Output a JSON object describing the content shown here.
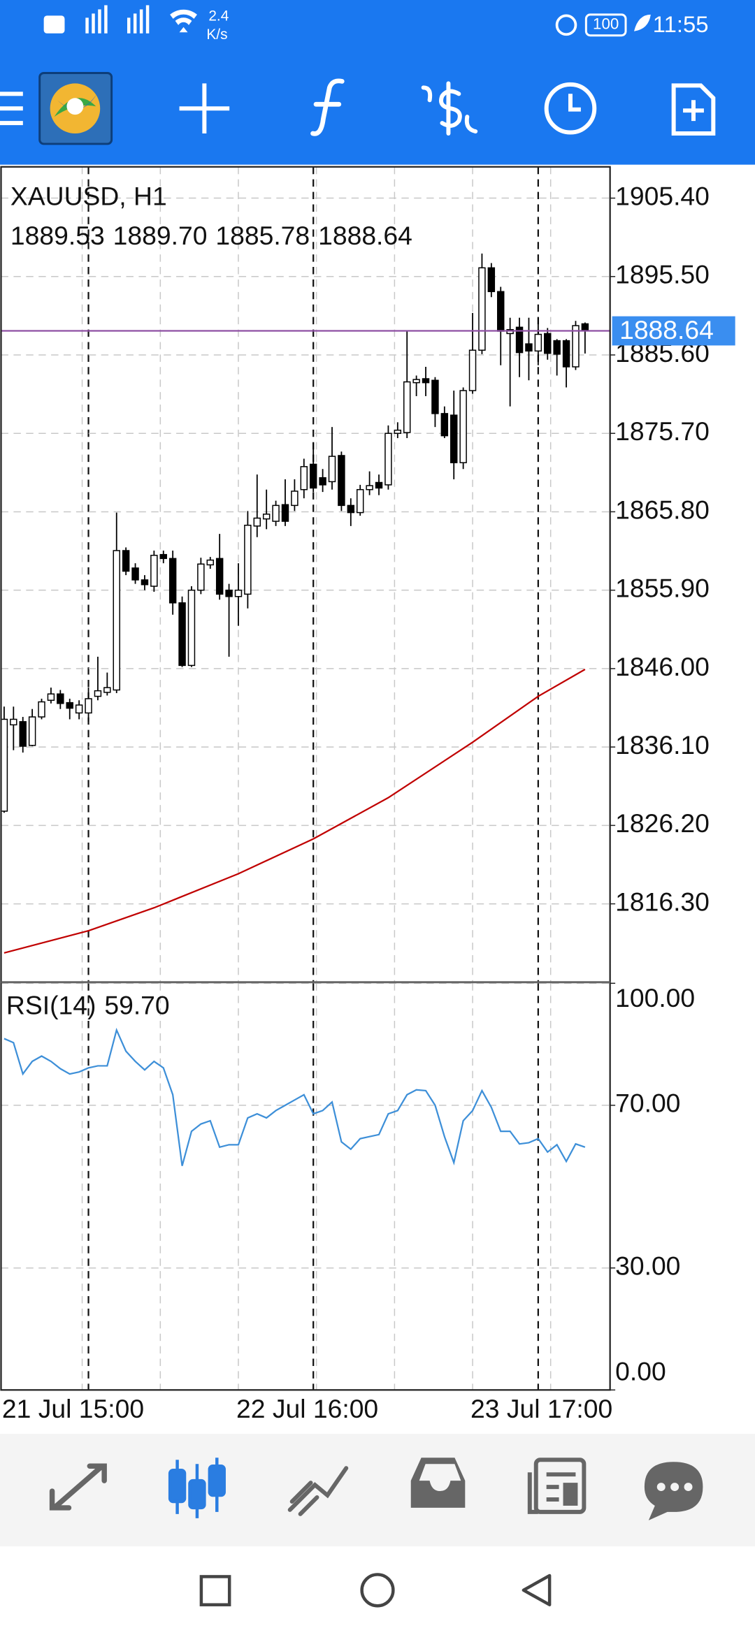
{
  "status_bar": {
    "network_speed": "2.4",
    "speed_unit": "K/s",
    "battery": "100",
    "time": "11:55"
  },
  "chart_data": [
    {
      "type": "candlestick",
      "title": "XAUUSD, H1",
      "ohlc_labels": [
        "1889.53",
        "1889.70",
        "1885.78",
        "1888.64"
      ],
      "open": [
        1828.0,
        1838.9,
        1839.3,
        1836.3,
        1839.9,
        1842.0,
        1842.8,
        1841.7,
        1840.4,
        1840.4,
        1842.5,
        1843.0,
        1843.3,
        1860.9,
        1858.7,
        1857.2,
        1856.4,
        1860.4,
        1859.9,
        1854.3,
        1846.4,
        1855.9,
        1859.1,
        1859.9,
        1855.9,
        1855.1,
        1855.4,
        1864.0,
        1864.9,
        1864.6,
        1866.7,
        1866.6,
        1868.6,
        1871.8,
        1870.1,
        1869.6,
        1872.9,
        1866.6,
        1865.7,
        1868.6,
        1869.5,
        1869.2,
        1875.7,
        1875.8,
        1882.1,
        1882.6,
        1882.4,
        1878.2,
        1878.0,
        1872.0,
        1881.1,
        1886.2,
        1896.6,
        1893.6,
        1888.3,
        1889.1,
        1887.0,
        1886.1,
        1888.3,
        1887.4,
        1887.4,
        1884.1,
        1889.53
      ],
      "high": [
        1841.2,
        1841.2,
        1839.9,
        1840.9,
        1842.2,
        1843.6,
        1843.3,
        1842.2,
        1842.0,
        1843.6,
        1847.5,
        1845.5,
        1865.7,
        1861.3,
        1859.3,
        1857.8,
        1860.9,
        1860.9,
        1860.9,
        1855.1,
        1856.4,
        1860.0,
        1860.1,
        1863.0,
        1856.7,
        1859.3,
        1865.9,
        1870.5,
        1868.6,
        1867.2,
        1869.9,
        1869.9,
        1872.5,
        1874.5,
        1871.2,
        1876.5,
        1873.4,
        1867.5,
        1869.2,
        1870.9,
        1870.5,
        1876.7,
        1877.1,
        1888.6,
        1883.0,
        1884.1,
        1882.8,
        1879.1,
        1881.1,
        1881.5,
        1890.9,
        1898.4,
        1897.2,
        1894.2,
        1890.3,
        1890.3,
        1890.3,
        1890.3,
        1889.0,
        1887.6,
        1887.6,
        1889.9,
        1889.7
      ],
      "low": [
        1827.8,
        1835.7,
        1835.4,
        1836.2,
        1839.6,
        1841.6,
        1840.9,
        1839.6,
        1839.6,
        1839.3,
        1842.0,
        1842.6,
        1842.9,
        1857.8,
        1856.7,
        1855.9,
        1855.7,
        1859.3,
        1852.8,
        1846.2,
        1846.2,
        1855.4,
        1858.6,
        1854.7,
        1847.5,
        1851.4,
        1853.6,
        1862.6,
        1863.6,
        1864.0,
        1864.0,
        1865.9,
        1867.5,
        1868.3,
        1868.3,
        1868.6,
        1865.9,
        1864.0,
        1865.3,
        1867.9,
        1867.9,
        1868.6,
        1875.1,
        1875.1,
        1880.4,
        1880.4,
        1876.5,
        1875.1,
        1869.9,
        1871.2,
        1880.7,
        1885.7,
        1892.9,
        1884.3,
        1879.1,
        1882.8,
        1882.4,
        1884.3,
        1885.0,
        1883.0,
        1881.5,
        1883.7,
        1885.78
      ],
      "close": [
        1839.6,
        1839.6,
        1836.2,
        1839.9,
        1841.8,
        1842.8,
        1841.6,
        1841.0,
        1841.4,
        1842.2,
        1843.2,
        1843.6,
        1860.9,
        1858.3,
        1857.2,
        1856.6,
        1860.3,
        1859.9,
        1854.3,
        1846.4,
        1855.9,
        1859.2,
        1859.7,
        1855.4,
        1855.1,
        1855.9,
        1864.1,
        1865.0,
        1865.5,
        1866.6,
        1864.6,
        1868.4,
        1871.5,
        1868.8,
        1869.2,
        1872.8,
        1866.6,
        1865.7,
        1868.6,
        1869.1,
        1868.8,
        1875.7,
        1876.1,
        1882.2,
        1882.5,
        1882.1,
        1878.2,
        1875.4,
        1872.0,
        1881.1,
        1886.2,
        1896.6,
        1893.6,
        1888.6,
        1888.8,
        1885.9,
        1886.1,
        1888.2,
        1885.8,
        1885.7,
        1884.1,
        1889.3,
        1888.64
      ],
      "up_color": "#ffffff",
      "down_color": "#000000",
      "moving_average": {
        "color": "#c00000",
        "x": [
          0,
          9,
          16,
          25,
          33,
          41,
          50,
          57,
          62
        ],
        "values": [
          1810.1,
          1812.9,
          1815.8,
          1820.1,
          1824.5,
          1829.7,
          1836.7,
          1842.5,
          1845.9
        ]
      },
      "current_price": {
        "value": 1888.64,
        "label": "1888.64",
        "color": "#3a8ef0",
        "line_color": "#8e4fa3"
      },
      "ylim": [
        1806.4,
        1909.35
      ],
      "yticks": [
        {
          "value": 1816.3,
          "label": "1816.30"
        },
        {
          "value": 1826.2,
          "label": "1826.20"
        },
        {
          "value": 1836.1,
          "label": "1836.10"
        },
        {
          "value": 1846.0,
          "label": "1846.00"
        },
        {
          "value": 1855.9,
          "label": "1855.90"
        },
        {
          "value": 1865.8,
          "label": "1865.80"
        },
        {
          "value": 1875.7,
          "label": "1875.70"
        },
        {
          "value": 1885.6,
          "label": "1885.60"
        },
        {
          "value": 1895.5,
          "label": "1895.50"
        },
        {
          "value": 1905.4,
          "label": "1905.40"
        }
      ],
      "xlim": [
        -0.33,
        64.67
      ],
      "xticks": [
        8.33,
        16.67,
        25,
        33.33,
        41.67,
        50,
        58.33
      ],
      "period_separators": [
        9,
        33,
        57
      ],
      "grid": true
    },
    {
      "type": "line",
      "title": "RSI(14)",
      "value_label": "59.70",
      "categories": [
        "21 Jul 15:00",
        null,
        null,
        null,
        null,
        null,
        null,
        null,
        null,
        null,
        null,
        null,
        null,
        null,
        null,
        null,
        null,
        null,
        null,
        null,
        null,
        null,
        null,
        null,
        null,
        "22 Jul 16:00",
        null,
        null,
        null,
        null,
        null,
        null,
        null,
        null,
        null,
        null,
        null,
        null,
        null,
        null,
        null,
        null,
        null,
        null,
        null,
        null,
        null,
        null,
        null,
        null,
        "23 Jul 17:00",
        null,
        null,
        null,
        null,
        null,
        null,
        null,
        null,
        null,
        null,
        null,
        null
      ],
      "series": [
        {
          "color": "#3d8fd8",
          "values": [
            86.4,
            85.4,
            77.7,
            80.8,
            82.1,
            80.8,
            79.0,
            77.7,
            78.2,
            79.2,
            79.7,
            79.7,
            88.5,
            83.3,
            80.8,
            78.7,
            80.8,
            79.2,
            72.6,
            55.1,
            63.6,
            65.4,
            66.2,
            59.7,
            60.3,
            60.3,
            66.9,
            67.9,
            66.9,
            68.7,
            70.0,
            71.3,
            72.6,
            67.9,
            68.7,
            70.8,
            61.0,
            59.2,
            61.8,
            62.3,
            62.8,
            67.9,
            68.7,
            72.6,
            73.8,
            73.6,
            70.0,
            62.3,
            55.9,
            66.2,
            68.7,
            73.6,
            69.5,
            63.6,
            63.6,
            60.5,
            60.8,
            61.8,
            58.5,
            60.3,
            56.2,
            60.5,
            59.7
          ]
        }
      ],
      "ylim": [
        0,
        100
      ],
      "yticks": [
        {
          "value": 0,
          "label": "0.00"
        },
        {
          "value": 30,
          "label": "30.00"
        },
        {
          "value": 70,
          "label": "70.00"
        },
        {
          "value": 100,
          "label": "100.00"
        }
      ],
      "xlim": [
        -0.33,
        64.67
      ],
      "xticks": [
        8.33,
        16.67,
        25,
        33.33,
        41.67,
        50,
        58.33
      ],
      "period_separators": [
        9,
        33,
        57
      ],
      "grid": true
    }
  ]
}
